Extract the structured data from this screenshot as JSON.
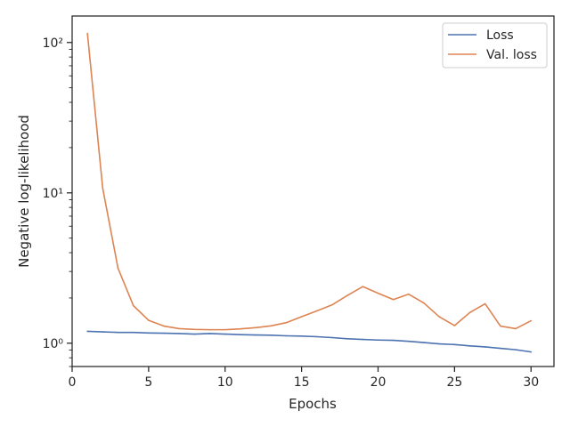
{
  "chart_data": {
    "type": "line",
    "xlabel": "Epochs",
    "ylabel": "Negative log-likelihood",
    "xlim": [
      0,
      31.5
    ],
    "ylim": [
      0.7,
      150
    ],
    "yscale": "log",
    "grid": false,
    "legend_position": "top-right",
    "x_ticks": [
      0,
      5,
      10,
      15,
      20,
      25,
      30
    ],
    "x_tick_labels": [
      "0",
      "5",
      "10",
      "15",
      "20",
      "25",
      "30"
    ],
    "y_ticks": [
      1,
      10,
      100
    ],
    "y_tick_labels": [
      "10⁰",
      "10¹",
      "10²"
    ],
    "x": [
      1,
      2,
      3,
      4,
      5,
      6,
      7,
      8,
      9,
      10,
      11,
      12,
      13,
      14,
      15,
      16,
      17,
      18,
      19,
      20,
      21,
      22,
      23,
      24,
      25,
      26,
      27,
      28,
      29,
      30
    ],
    "series": [
      {
        "name": "Loss",
        "color": "#4c72b0",
        "values": [
          1.2,
          1.19,
          1.18,
          1.18,
          1.17,
          1.165,
          1.16,
          1.15,
          1.16,
          1.15,
          1.14,
          1.135,
          1.13,
          1.12,
          1.115,
          1.105,
          1.09,
          1.07,
          1.06,
          1.05,
          1.045,
          1.03,
          1.01,
          0.99,
          0.98,
          0.96,
          0.945,
          0.925,
          0.905,
          0.875
        ]
      },
      {
        "name": "Val. loss",
        "color": "#dd8452",
        "values": [
          115,
          10.7,
          3.15,
          1.78,
          1.42,
          1.3,
          1.25,
          1.235,
          1.23,
          1.23,
          1.245,
          1.27,
          1.305,
          1.37,
          1.5,
          1.64,
          1.8,
          2.08,
          2.38,
          2.15,
          1.95,
          2.12,
          1.85,
          1.5,
          1.31,
          1.6,
          1.83,
          1.3,
          1.25,
          1.41
        ]
      }
    ]
  }
}
